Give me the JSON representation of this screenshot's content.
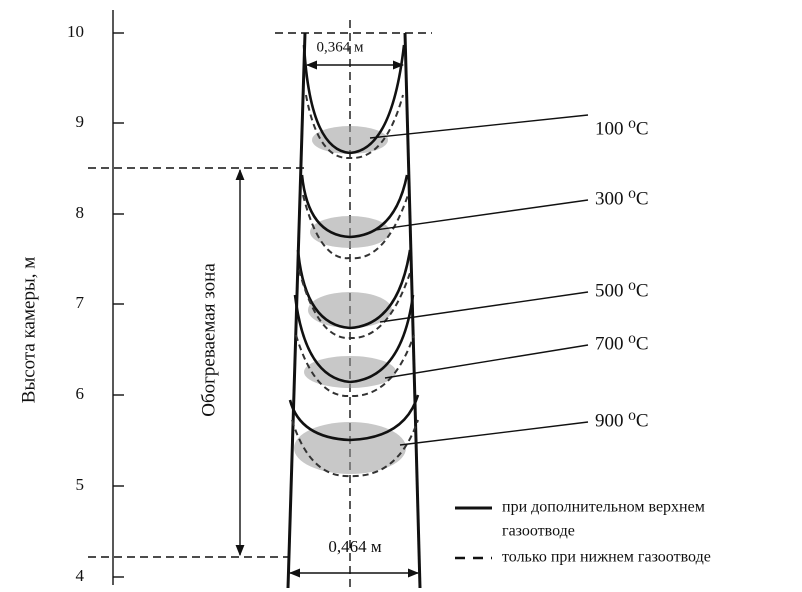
{
  "axis": {
    "label": "Высота камеры, м",
    "ticks": [
      "10",
      "9",
      "8",
      "7",
      "6",
      "5",
      "4"
    ]
  },
  "zone_label": "Обогреваемая зона",
  "top_width": "0,364 м",
  "bottom_width": "0,464 м",
  "isotherms": [
    "100 ⁰C",
    "300 ⁰C",
    "500 ⁰C",
    "700 ⁰C",
    "900 ⁰C"
  ],
  "legend": {
    "solid": [
      "при дополнительном верхнем",
      "газоотводе"
    ],
    "dashed": "только при нижнем газоотводе"
  }
}
